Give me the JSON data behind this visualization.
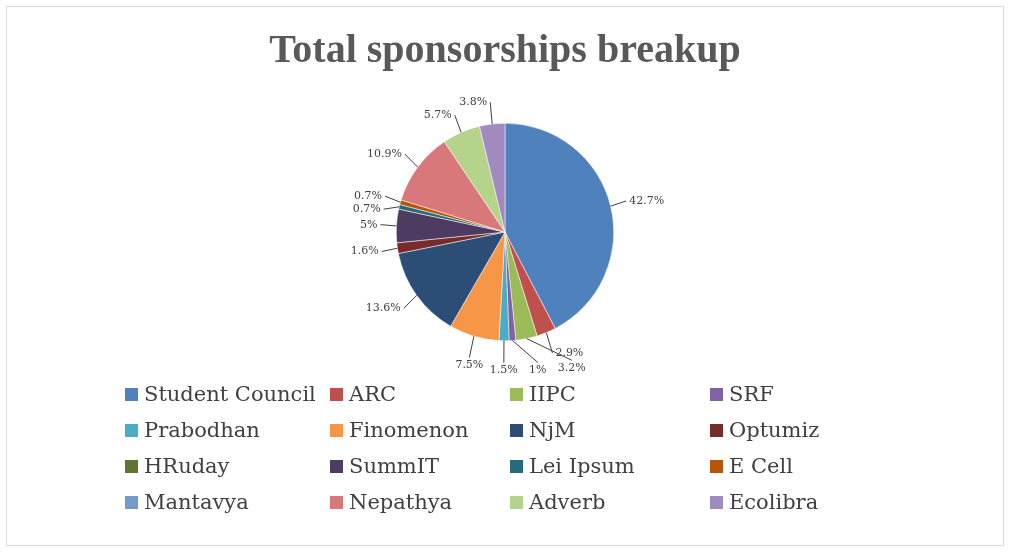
{
  "chart_data": {
    "type": "pie",
    "title": "Total sponsorships breakup",
    "legend": "bottom",
    "categories": [
      "Student Council",
      "ARC",
      "IIPC",
      "SRF",
      "Prabodhan",
      "Finomenon",
      "NjM",
      "Optumiz",
      "HRuday",
      "SummIT",
      "Lei Ipsum",
      "E Cell",
      "Mantavya",
      "Nepathya",
      "Adverb",
      "Ecolibra"
    ],
    "values": [
      42.7,
      2.9,
      3.2,
      1,
      1.5,
      7.5,
      13.6,
      1.6,
      0,
      5,
      0.7,
      0.7,
      0,
      10.9,
      5.7,
      3.8
    ],
    "value_labels": [
      "42.7%",
      "2.9%",
      "3.2%",
      "1%",
      "1.5%",
      "7.5%",
      "13.6%",
      "1.6%",
      null,
      "5%",
      "0.7%",
      "0.7%",
      null,
      "10.9%",
      "5.7%",
      "3.8%"
    ],
    "colors": [
      "#4f81bd",
      "#c0504d",
      "#9bbb59",
      "#8064a2",
      "#4bacc6",
      "#f79646",
      "#2c4d75",
      "#772c2a",
      "#5f7530",
      "#4d3b62",
      "#276a7c",
      "#b65708",
      "#729aca",
      "#d9787a",
      "#b5d38a",
      "#a08ac0"
    ]
  }
}
